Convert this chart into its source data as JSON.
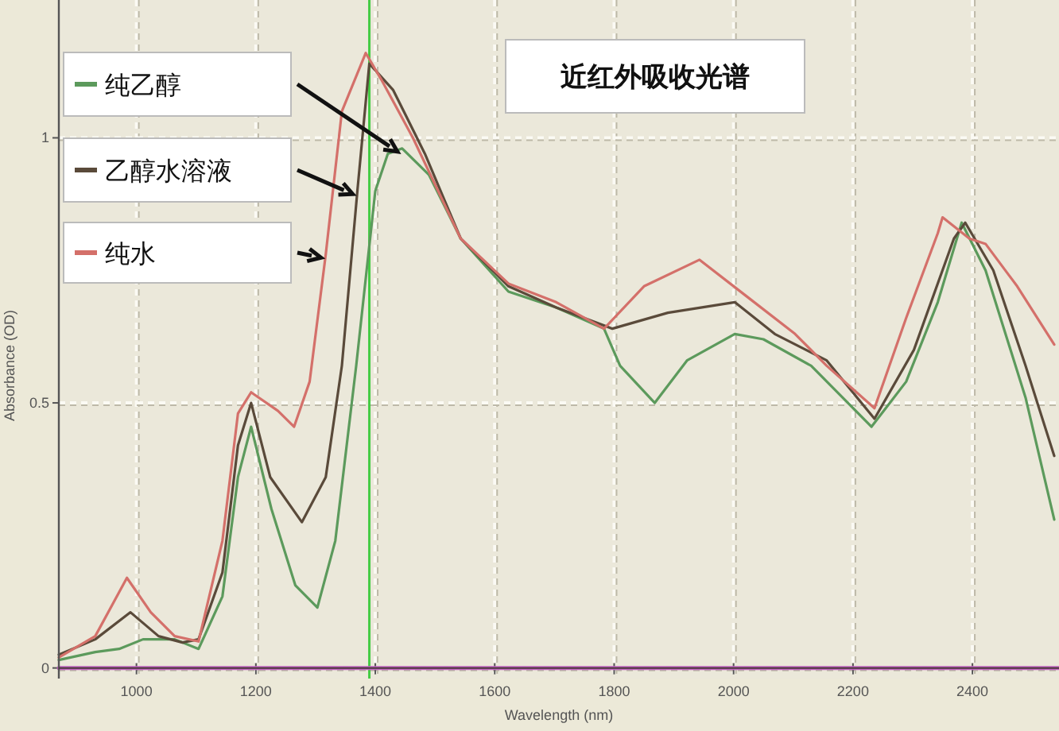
{
  "chart_data": {
    "type": "line",
    "title": "近红外吸收光谱",
    "xlabel": "Wavelength (nm)",
    "ylabel": "Absorbance (OD)",
    "xlim": [
      870,
      2545
    ],
    "ylim": [
      -0.02,
      1.26
    ],
    "xticks": [
      1000,
      1200,
      1400,
      1600,
      1800,
      2000,
      2200,
      2400
    ],
    "yticks": [
      0,
      {
        "value": 0.5,
        "label": "0.5"
      },
      1
    ],
    "grid": true,
    "legend": "top left",
    "marker": "none",
    "line_style": "solid",
    "ref_lines": [
      {
        "axis": "x",
        "value": 1390,
        "color": "#44cc44"
      }
    ],
    "series": [
      {
        "name": "纯乙醇",
        "color": "#5c9a5c",
        "x": [
          870,
          931,
          971,
          1011,
          1064,
          1104,
          1144,
          1170,
          1192,
          1226,
          1266,
          1303,
          1333,
          1368,
          1400,
          1421,
          1445,
          1490,
          1543,
          1623,
          1703,
          1783,
          1810,
          1868,
          1922,
          2002,
          2050,
          2130,
          2231,
          2289,
          2342,
          2382,
          2422,
          2489,
          2537
        ],
        "values": [
          0.015,
          0.03,
          0.036,
          0.054,
          0.054,
          0.036,
          0.135,
          0.36,
          0.455,
          0.3,
          0.156,
          0.114,
          0.24,
          0.57,
          0.9,
          0.97,
          0.98,
          0.93,
          0.81,
          0.71,
          0.68,
          0.64,
          0.57,
          0.5,
          0.58,
          0.63,
          0.62,
          0.57,
          0.455,
          0.54,
          0.69,
          0.84,
          0.75,
          0.51,
          0.28
        ]
      },
      {
        "name": "乙醇水溶液",
        "color": "#5a4a3a",
        "x": [
          870,
          931,
          990,
          1037,
          1077,
          1104,
          1144,
          1170,
          1192,
          1224,
          1277,
          1317,
          1344,
          1370,
          1390,
          1430,
          1483,
          1543,
          1623,
          1703,
          1797,
          1890,
          2002,
          2069,
          2156,
          2236,
          2302,
          2369,
          2388,
          2435,
          2489,
          2537
        ],
        "values": [
          0.025,
          0.054,
          0.105,
          0.06,
          0.048,
          0.054,
          0.18,
          0.42,
          0.5,
          0.36,
          0.275,
          0.36,
          0.57,
          0.9,
          1.14,
          1.09,
          0.97,
          0.81,
          0.72,
          0.68,
          0.64,
          0.67,
          0.69,
          0.63,
          0.58,
          0.47,
          0.6,
          0.81,
          0.84,
          0.75,
          0.57,
          0.4
        ]
      },
      {
        "name": "纯水",
        "color": "#d4706a",
        "x": [
          870,
          931,
          984,
          1024,
          1064,
          1104,
          1144,
          1170,
          1192,
          1237,
          1264,
          1290,
          1317,
          1344,
          1384,
          1410,
          1463,
          1543,
          1623,
          1703,
          1783,
          1850,
          1943,
          2023,
          2103,
          2156,
          2236,
          2289,
          2342,
          2350,
          2395,
          2422,
          2475,
          2537
        ],
        "values": [
          0.02,
          0.06,
          0.17,
          0.105,
          0.06,
          0.05,
          0.24,
          0.48,
          0.52,
          0.485,
          0.455,
          0.54,
          0.78,
          1.05,
          1.16,
          1.11,
          1.0,
          0.81,
          0.725,
          0.69,
          0.64,
          0.72,
          0.77,
          0.7,
          0.63,
          0.57,
          0.49,
          0.66,
          0.82,
          0.85,
          0.81,
          0.8,
          0.72,
          0.61
        ]
      },
      {
        "color": "#c060c0",
        "x": [
          870,
          2545
        ],
        "values": [
          0,
          0
        ]
      }
    ]
  }
}
